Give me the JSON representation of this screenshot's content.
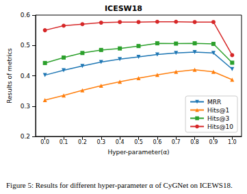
{
  "chart_data": {
    "type": "line",
    "title": "ICESW18",
    "caption": "Figure 5: Results for different hyper-parameter α of CyGNet on ICEWS18.",
    "x_label": "Hyper-parameter(α)",
    "y_label": "Results of metrics",
    "categories": [
      "0.0",
      "0.1",
      "0.2",
      "0.3",
      "0.4",
      "0.5",
      "0.6",
      "0.7",
      "0.8",
      "0.9",
      "1.0"
    ],
    "series": [
      {
        "name": "MRR",
        "color": "#1f77b4",
        "marker": "triangle-down",
        "values": [
          0.402,
          0.418,
          0.432,
          0.445,
          0.455,
          0.462,
          0.47,
          0.475,
          0.478,
          0.475,
          0.422
        ]
      },
      {
        "name": "Hits@1",
        "color": "#ff7f0e",
        "marker": "triangle-up",
        "values": [
          0.32,
          0.335,
          0.352,
          0.367,
          0.38,
          0.392,
          0.403,
          0.413,
          0.42,
          0.413,
          0.387
        ]
      },
      {
        "name": "Hits@3",
        "color": "#2ca02c",
        "marker": "square",
        "values": [
          0.442,
          0.46,
          0.475,
          0.485,
          0.49,
          0.498,
          0.507,
          0.506,
          0.507,
          0.505,
          0.443
        ]
      },
      {
        "name": "Hits@10",
        "color": "#d62728",
        "marker": "circle",
        "values": [
          0.55,
          0.565,
          0.57,
          0.575,
          0.577,
          0.577,
          0.578,
          0.578,
          0.577,
          0.577,
          0.468
        ]
      }
    ],
    "ylim": [
      0.2,
      0.6
    ],
    "yticks": [
      0.2,
      0.3,
      0.4,
      0.5,
      0.6
    ],
    "grid": false,
    "legend": "lower right"
  }
}
